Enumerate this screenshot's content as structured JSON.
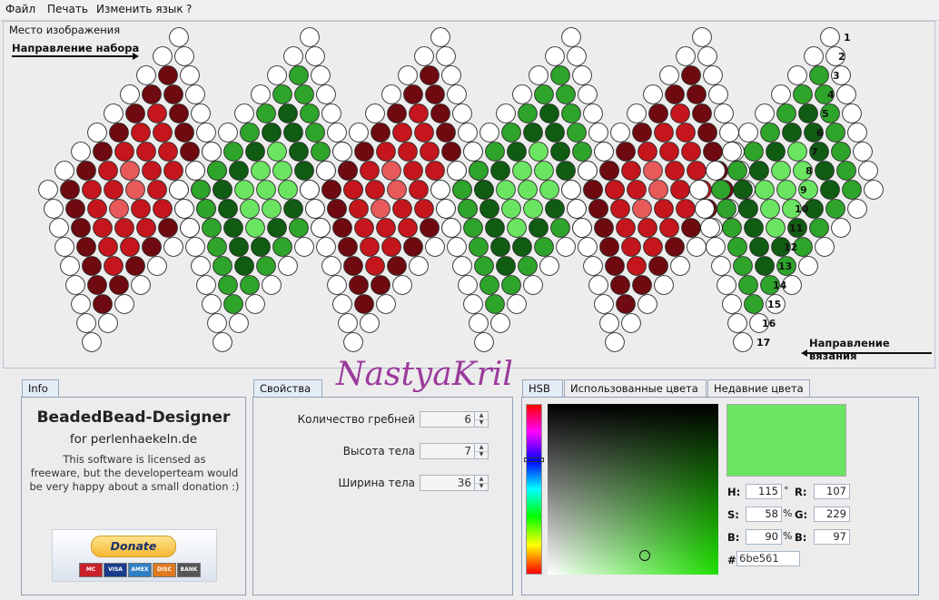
{
  "menu": [
    "Файл",
    "Печать",
    "Изменить язык",
    "?"
  ],
  "image_area": {
    "title": "Место изображения",
    "direction_set": "Направление набора",
    "direction_knit": "Направление вязания",
    "row_numbers": [
      "1",
      "2",
      "3",
      "4",
      "5",
      "6",
      "7",
      "8",
      "9",
      "10",
      "11",
      "12",
      "13",
      "14",
      "15",
      "16",
      "17"
    ]
  },
  "watermark": "NastyaKril",
  "info_panel": {
    "tab": "Info",
    "title": "BeadedBead-Designer",
    "subtitle": "for perlenhaekeln.de",
    "text_lines": [
      "This software is licensed as",
      "freeware, but the developerteam would",
      "be very happy about a small donation :)"
    ],
    "donate_label": "Donate",
    "cards": [
      "MC",
      "VISA",
      "AMEX",
      "DISC",
      "BANK"
    ]
  },
  "properties_panel": {
    "tab": "Свойства",
    "fields": [
      {
        "label": "Количество гребней",
        "value": "6"
      },
      {
        "label": "Высота тела",
        "value": "7"
      },
      {
        "label": "Ширина тела",
        "value": "36"
      }
    ]
  },
  "color_panel": {
    "tabs": [
      "HSB",
      "Использованные цвета",
      "Недавние цвета"
    ],
    "active_tab": "HSB",
    "preview_color": "#6be561",
    "h": "115",
    "s": "58",
    "b": "90",
    "r": "107",
    "g": "229",
    "b_rgb": "97",
    "hex": "6be561",
    "labels": {
      "h": "H:",
      "s": "S:",
      "b": "B:",
      "r": "R:",
      "g": "G:",
      "bb": "B:",
      "hash": "#"
    },
    "units": {
      "deg": "°",
      "pct": "%"
    }
  },
  "palette": {
    "white": "#ffffff",
    "dark_red": "#6e0a10",
    "red": "#c4161c",
    "light_red": "#e85a5a",
    "dark_green": "#0f5c12",
    "green": "#2ea52a",
    "light_green": "#6be561",
    "outline": "#2a2a2a"
  }
}
